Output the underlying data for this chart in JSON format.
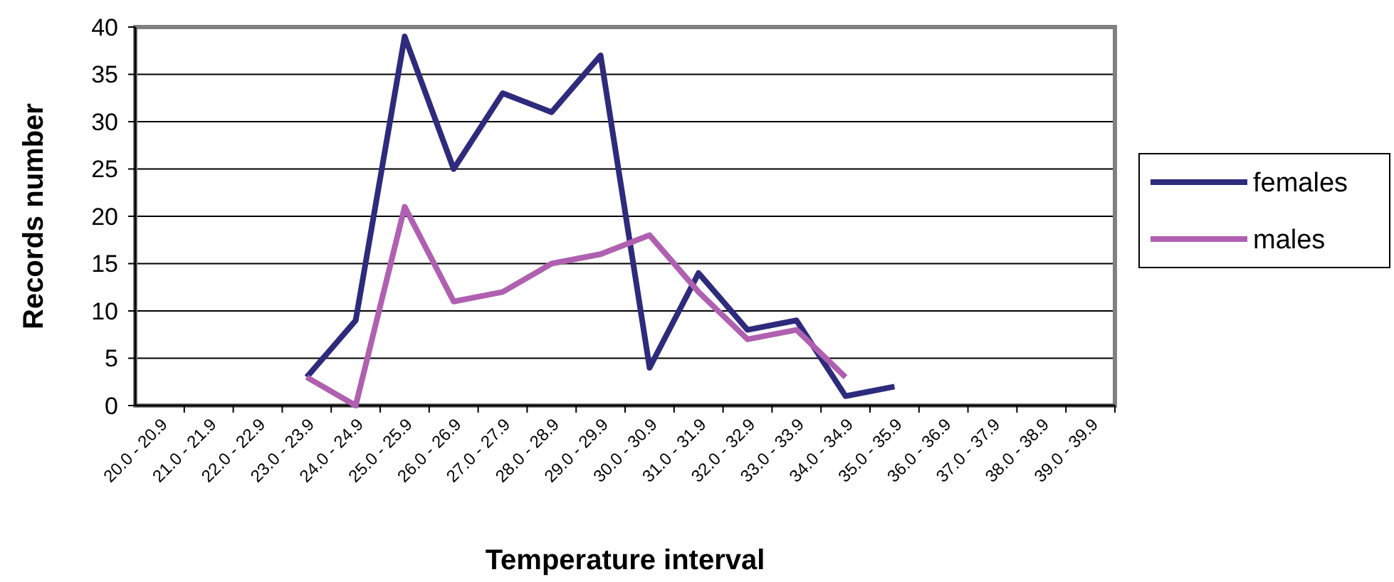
{
  "chart_data": {
    "type": "line",
    "xlabel": "Temperature interval",
    "ylabel": "Records number",
    "categories": [
      "20.0 - 20.9",
      "21.0 - 21.9",
      "22.0 - 22.9",
      "23.0 - 23.9",
      "24.0 - 24.9",
      "25.0 - 25.9",
      "26.0 - 26.9",
      "27.0 - 27.9",
      "28.0 - 28.9",
      "29.0 - 29.9",
      "30.0 - 30.9",
      "31.0 - 31.9",
      "32.0 - 32.9",
      "33.0 - 33.9",
      "34.0 - 34.9",
      "35.0 - 35.9",
      "36.0 - 36.9",
      "37.0 - 37.9",
      "38.0 - 38.9",
      "39.0 - 39.9"
    ],
    "series": [
      {
        "name": "females",
        "color": "#2e2a7c",
        "values": [
          null,
          null,
          null,
          3,
          9,
          39,
          25,
          33,
          31,
          37,
          4,
          14,
          8,
          9,
          1,
          2,
          null,
          null,
          null,
          null
        ]
      },
      {
        "name": "males",
        "color": "#b060b0",
        "values": [
          null,
          null,
          null,
          3,
          0,
          21,
          11,
          12,
          15,
          16,
          18,
          12,
          7,
          8,
          3,
          null,
          null,
          null,
          null,
          null
        ]
      }
    ],
    "ylim": [
      0,
      40
    ],
    "yticks": [
      0,
      5,
      10,
      15,
      20,
      25,
      30,
      35,
      40
    ],
    "grid": "y",
    "legend": "right",
    "marker": "none",
    "line_style": "solid"
  }
}
